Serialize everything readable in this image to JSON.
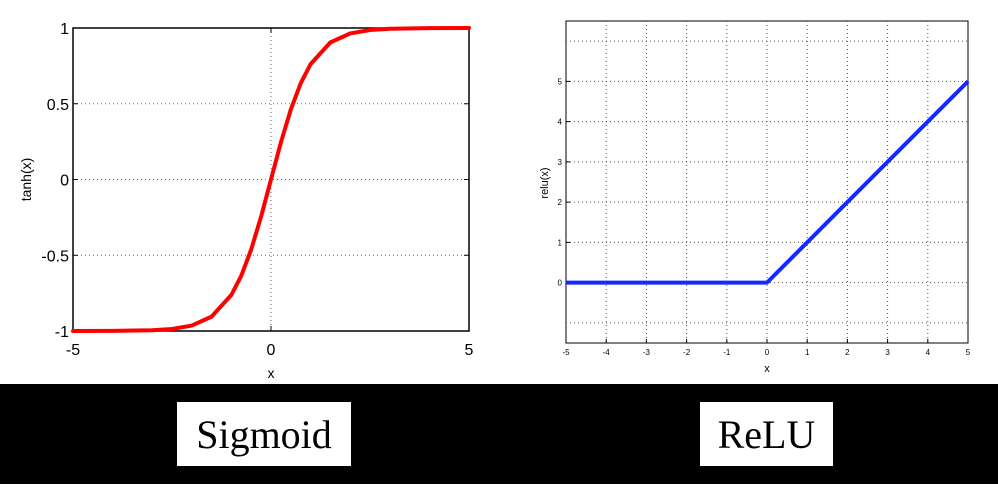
{
  "chart_data": [
    {
      "type": "line",
      "function": "tanh",
      "xlabel": "x",
      "ylabel": "tanh(x)",
      "xlim": [
        -5,
        5
      ],
      "ylim": [
        -1,
        1
      ],
      "x_ticks": [
        -5,
        0,
        5
      ],
      "y_ticks": [
        -1,
        -0.5,
        0,
        0.5,
        1
      ],
      "x_tick_labels": [
        "-5",
        "0",
        "5"
      ],
      "y_tick_labels": [
        "-1",
        "-0.5",
        "0",
        "0.5",
        "1"
      ],
      "grid": "dotted lines at x = 0 and at each y tick",
      "series": [
        {
          "color": "#ff0000",
          "x": [
            -5,
            -4,
            -3,
            -2.5,
            -2,
            -1.5,
            -1,
            -0.75,
            -0.5,
            -0.25,
            0,
            0.25,
            0.5,
            0.75,
            1,
            1.5,
            2,
            2.5,
            3,
            4,
            5
          ],
          "y": [
            -0.9999,
            -0.9993,
            -0.9951,
            -0.9866,
            -0.964,
            -0.9051,
            -0.7616,
            -0.6351,
            -0.4621,
            -0.2449,
            0,
            0.2449,
            0.4621,
            0.6351,
            0.7616,
            0.9051,
            0.964,
            0.9866,
            0.9951,
            0.9993,
            0.9999
          ]
        }
      ],
      "caption": "Sigmoid"
    },
    {
      "type": "line",
      "function": "relu",
      "xlabel": "x",
      "ylabel": "relu(x)",
      "xlim": [
        -5,
        5
      ],
      "ylim": [
        -1.5,
        6.5
      ],
      "x_ticks": [
        -5,
        -4,
        -3,
        -2,
        -1,
        0,
        1,
        2,
        3,
        4,
        5
      ],
      "y_ticks": [
        0,
        1,
        2,
        3,
        4,
        5
      ],
      "x_tick_labels": [
        "-5",
        "-4",
        "-3",
        "-2",
        "-1",
        "0",
        "1",
        "2",
        "3",
        "4",
        "5"
      ],
      "y_tick_labels": [
        "0",
        "1",
        "2",
        "3",
        "4",
        "5"
      ],
      "grid": "dotted full grid",
      "series": [
        {
          "color": "#1428ff",
          "x": [
            -5,
            0,
            5
          ],
          "y": [
            0,
            0,
            5
          ]
        }
      ],
      "caption": "ReLU"
    }
  ],
  "captions": {
    "left": "Sigmoid",
    "right": "ReLU"
  }
}
